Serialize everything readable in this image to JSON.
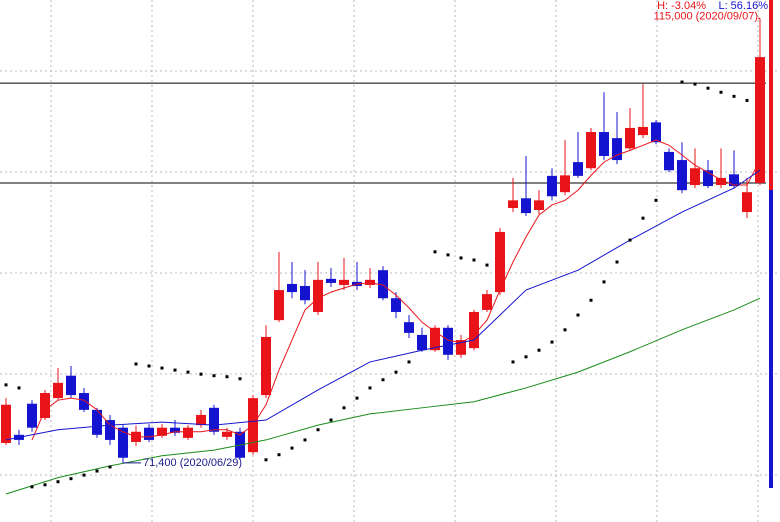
{
  "chart_data": {
    "type": "candlestick",
    "high_label": "H: -3.04%",
    "low_label": "L: 56.16%",
    "ylim": [
      65600,
      116800
    ],
    "grid": true,
    "up_color": "#e8141a",
    "down_color": "#1414d0",
    "hlines": [
      108650,
      98850
    ],
    "open": [
      73350,
      74150,
      77200,
      75800,
      77750,
      79950,
      78250,
      76600,
      75600,
      74850,
      73450,
      74850,
      74050,
      74850,
      73850,
      75100,
      76800,
      73950,
      74450,
      72450,
      78050,
      85400,
      88950,
      88750,
      86200,
      89450,
      88850,
      89150,
      88850,
      90300,
      87550,
      85200,
      83950,
      82450,
      84650,
      82000,
      82650,
      86400,
      88150,
      96400,
      97350,
      96200,
      99550,
      97950,
      100900,
      100300,
      103850,
      103250,
      102250,
      103550,
      104800,
      101900,
      101100,
      98650,
      100100,
      98650,
      99700,
      96000,
      98850
    ],
    "high": [
      77750,
      74650,
      77550,
      78550,
      80700,
      80900,
      78750,
      76800,
      76100,
      75100,
      75050,
      75200,
      75200,
      75600,
      75100,
      76600,
      77100,
      74850,
      74850,
      78050,
      84900,
      92100,
      91100,
      90300,
      91100,
      90500,
      91500,
      91100,
      90500,
      90700,
      88150,
      85900,
      84650,
      84900,
      84900,
      83950,
      86400,
      88350,
      94450,
      99350,
      101500,
      98150,
      100300,
      103050,
      103850,
      104250,
      107750,
      105800,
      106200,
      108550,
      105000,
      102250,
      102850,
      102250,
      101100,
      102250,
      102050,
      99350,
      115000
    ],
    "low": [
      73150,
      73150,
      74450,
      75600,
      77550,
      77750,
      76400,
      73850,
      73150,
      71400,
      73050,
      73450,
      73850,
      74050,
      73650,
      74850,
      74150,
      73650,
      71700,
      72200,
      77750,
      85200,
      87550,
      86950,
      85900,
      88650,
      88350,
      88350,
      88550,
      87350,
      85600,
      83650,
      82300,
      82300,
      81500,
      81700,
      82450,
      86200,
      87850,
      96000,
      95600,
      95800,
      97150,
      97650,
      99350,
      100100,
      101100,
      100700,
      102050,
      103250,
      102650,
      99900,
      97850,
      98350,
      98350,
      98350,
      98350,
      95400,
      98650
    ],
    "close": [
      77100,
      73650,
      74850,
      78250,
      79250,
      78050,
      76600,
      74150,
      73650,
      71900,
      74450,
      73650,
      74850,
      74350,
      74850,
      76100,
      74450,
      74450,
      71900,
      77750,
      83750,
      88350,
      88150,
      87350,
      89350,
      89050,
      89350,
      88750,
      89350,
      87550,
      86200,
      84150,
      82450,
      84650,
      82000,
      83450,
      86200,
      87950,
      94050,
      97150,
      95900,
      97150,
      97550,
      99600,
      99550,
      103850,
      101500,
      101100,
      104250,
      104350,
      102850,
      100100,
      98150,
      100300,
      98550,
      99350,
      98550,
      97950,
      111200
    ],
    "lines": [
      {
        "color": "#e8141a",
        "values": [
          null,
          null,
          73650,
          76600,
          77550,
          77750,
          77550,
          76600,
          75100,
          74450,
          73950,
          73950,
          74150,
          74450,
          74450,
          74450,
          74650,
          74650,
          74150,
          75100,
          77100,
          80500,
          83450,
          86400,
          87550,
          88150,
          88550,
          88950,
          89050,
          88850,
          87850,
          86600,
          85200,
          84250,
          83450,
          83150,
          83950,
          85400,
          88350,
          91100,
          93550,
          95700,
          96700,
          97150,
          98150,
          99600,
          100900,
          101600,
          102050,
          102550,
          103050,
          102550,
          101600,
          100600,
          99900,
          99150,
          98650,
          98650,
          101100
        ]
      },
      {
        "color": "#1414d0",
        "x": [
          0,
          4,
          8,
          12,
          16,
          20,
          24,
          28,
          32,
          36,
          40,
          44,
          48,
          52,
          56,
          58
        ],
        "values": [
          73650,
          74650,
          75100,
          75400,
          75100,
          75600,
          78550,
          81300,
          82450,
          83450,
          88350,
          90300,
          93250,
          96000,
          98350,
          100100
        ]
      },
      {
        "color": "#1a8c1a",
        "x": [
          0,
          4,
          8,
          12,
          16,
          20,
          24,
          28,
          32,
          36,
          40,
          44,
          48,
          52,
          56,
          58
        ],
        "values": [
          68350,
          69950,
          71100,
          72100,
          72650,
          73650,
          75100,
          76200,
          76800,
          77400,
          78750,
          80300,
          82300,
          84450,
          86400,
          87550
        ]
      }
    ],
    "sar": {
      "color": "#000000",
      "values": [
        79050,
        78750,
        69050,
        69250,
        69550,
        69850,
        70200,
        70600,
        71000,
        null,
        81100,
        80900,
        80700,
        80500,
        80300,
        80100,
        79950,
        79850,
        79650,
        null,
        71700,
        72200,
        72850,
        73650,
        74650,
        75600,
        76800,
        77750,
        78750,
        79550,
        80300,
        81300,
        null,
        92100,
        91800,
        91500,
        91300,
        90800,
        null,
        81300,
        81800,
        82450,
        83250,
        84450,
        85900,
        87350,
        89150,
        91100,
        93250,
        95400,
        97150,
        null,
        108750,
        108550,
        108150,
        107750,
        107350,
        106950,
        null
      ]
    },
    "annotations": [
      {
        "text": "115,000 (2020/09/07)",
        "value": 115000,
        "index": 58,
        "color": "#e8141a",
        "side": "left"
      },
      {
        "text": "71,400 (2020/06/29)",
        "value": 71400,
        "index": 9,
        "color": "#1a1a8c",
        "side": "right"
      }
    ]
  }
}
